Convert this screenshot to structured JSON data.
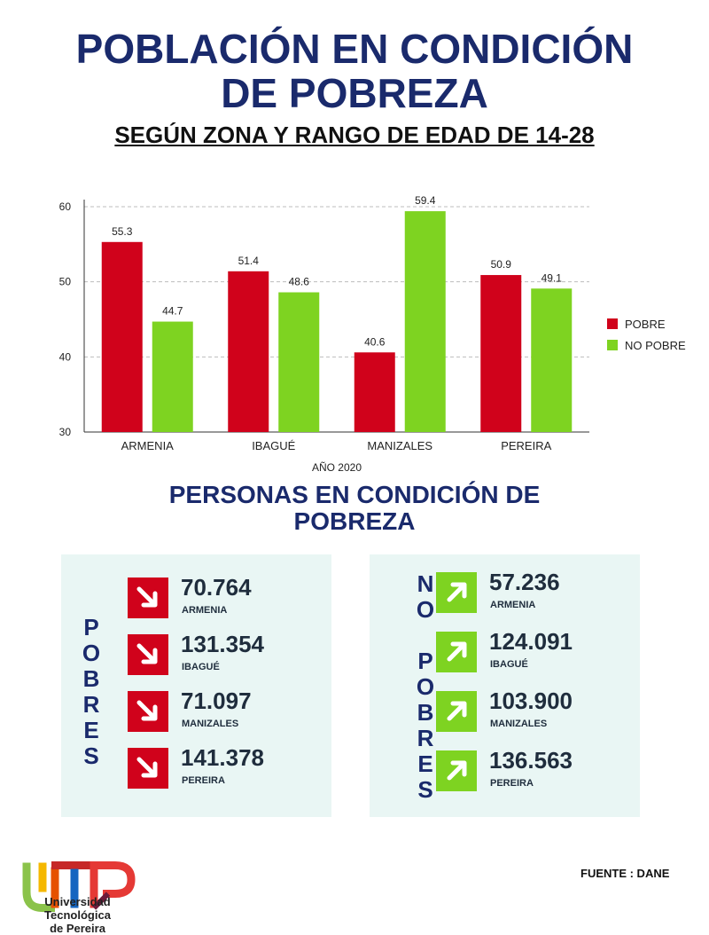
{
  "header": {
    "title_line1": "POBLACIÓN EN CONDICIÓN",
    "title_line2": "DE POBREZA",
    "subtitle": "SEGÚN ZONA Y RANGO DE EDAD DE 14-28"
  },
  "chart_data": {
    "type": "bar",
    "categories": [
      "ARMENIA",
      "IBAGUÉ",
      "MANIZALES",
      "PEREIRA"
    ],
    "series": [
      {
        "name": "POBRE",
        "values": [
          55.3,
          51.4,
          40.6,
          50.9
        ],
        "color": "#d0021b"
      },
      {
        "name": "NO POBRE",
        "values": [
          44.7,
          48.6,
          59.4,
          49.1
        ],
        "color": "#7ed321"
      }
    ],
    "xlabel": "AÑO 2020",
    "ylabel": "",
    "ylim": [
      30,
      60
    ],
    "yticks": [
      30,
      40,
      50,
      60
    ],
    "grid": true,
    "legend_position": "right"
  },
  "section": {
    "title_line1": "PERSONAS EN CONDICIÓN DE",
    "title_line2": "POBREZA"
  },
  "pobres": {
    "label": "POBRES",
    "items": [
      {
        "value": "70.764",
        "city": "ARMENIA"
      },
      {
        "value": "131.354",
        "city": "IBAGUÉ"
      },
      {
        "value": "71.097",
        "city": "MANIZALES"
      },
      {
        "value": "141.378",
        "city": "PEREIRA"
      }
    ]
  },
  "no_pobres": {
    "label_line1": "NO",
    "label_line2": "POBRES",
    "items": [
      {
        "value": "57.236",
        "city": "ARMENIA"
      },
      {
        "value": "124.091",
        "city": "IBAGUÉ"
      },
      {
        "value": "103.900",
        "city": "MANIZALES"
      },
      {
        "value": "136.563",
        "city": "PEREIRA"
      }
    ]
  },
  "colors": {
    "title": "#1a2a6c",
    "pobre": "#d0021b",
    "no_pobre": "#7ed321",
    "panel": "#e9f6f4"
  },
  "icons": {
    "down": "arrow-down-right-icon",
    "up": "arrow-up-right-icon"
  },
  "footer": {
    "source": "FUENTE : DANE",
    "logo_text": "UTP",
    "university_line1": "Universidad Tecnológica",
    "university_line2": "de Pereira"
  }
}
